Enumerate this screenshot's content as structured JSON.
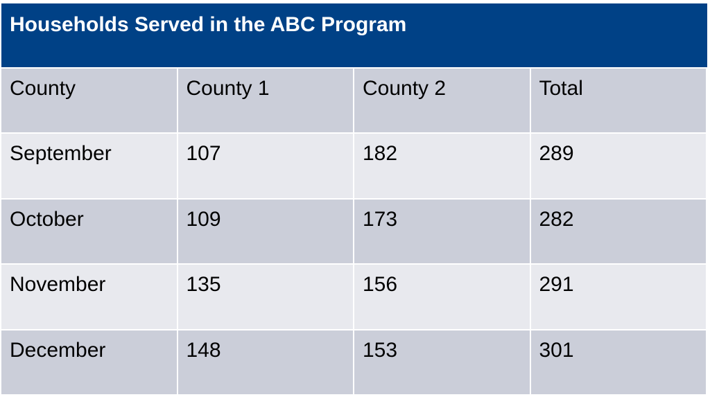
{
  "header": {
    "title": "Households Served in the ABC Program"
  },
  "table": {
    "columns": [
      "County",
      "County 1",
      "County 2",
      "Total"
    ],
    "rows": [
      [
        "September",
        107,
        182,
        289
      ],
      [
        "October",
        109,
        173,
        282
      ],
      [
        "November",
        135,
        156,
        291
      ],
      [
        "December",
        148,
        153,
        301
      ]
    ]
  }
}
